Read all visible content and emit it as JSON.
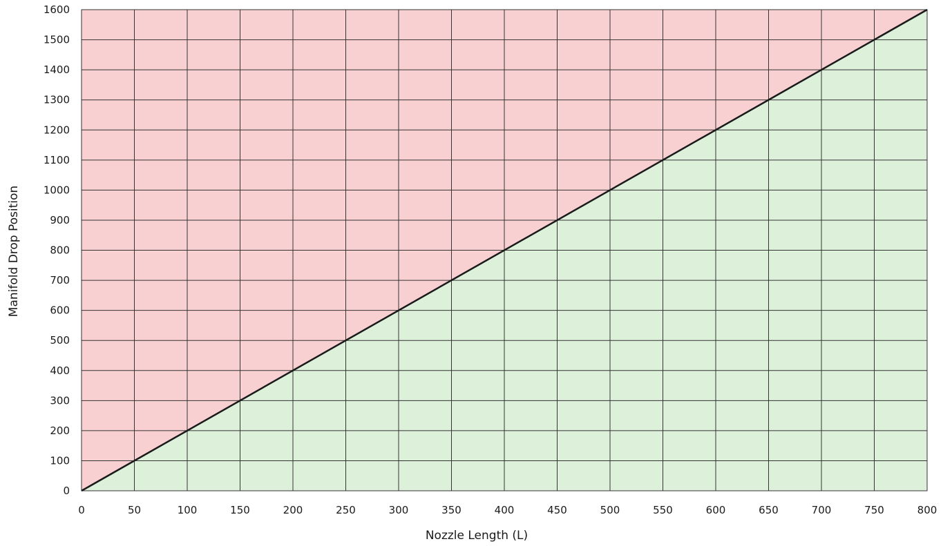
{
  "chart_data": {
    "type": "area",
    "title": "",
    "xlabel": "Nozzle Length (L)",
    "ylabel": "Manifold Drop Position",
    "xlim": [
      0,
      800
    ],
    "ylim": [
      0,
      1600
    ],
    "x_ticks": [
      0,
      50,
      100,
      150,
      200,
      250,
      300,
      350,
      400,
      450,
      500,
      550,
      600,
      650,
      700,
      750,
      800
    ],
    "y_ticks": [
      0,
      100,
      200,
      300,
      400,
      500,
      600,
      700,
      800,
      900,
      1000,
      1100,
      1200,
      1300,
      1400,
      1500,
      1600
    ],
    "grid": true,
    "legend": "none",
    "series": [
      {
        "x": [
          0,
          800
        ],
        "y": [
          0,
          1600
        ],
        "color": "#1a1a1a"
      }
    ],
    "regions": [
      {
        "position": "above-line",
        "color": "#f9d0d2"
      },
      {
        "position": "below-line",
        "color": "#dcf0da"
      }
    ],
    "grid_color": "#333333"
  }
}
